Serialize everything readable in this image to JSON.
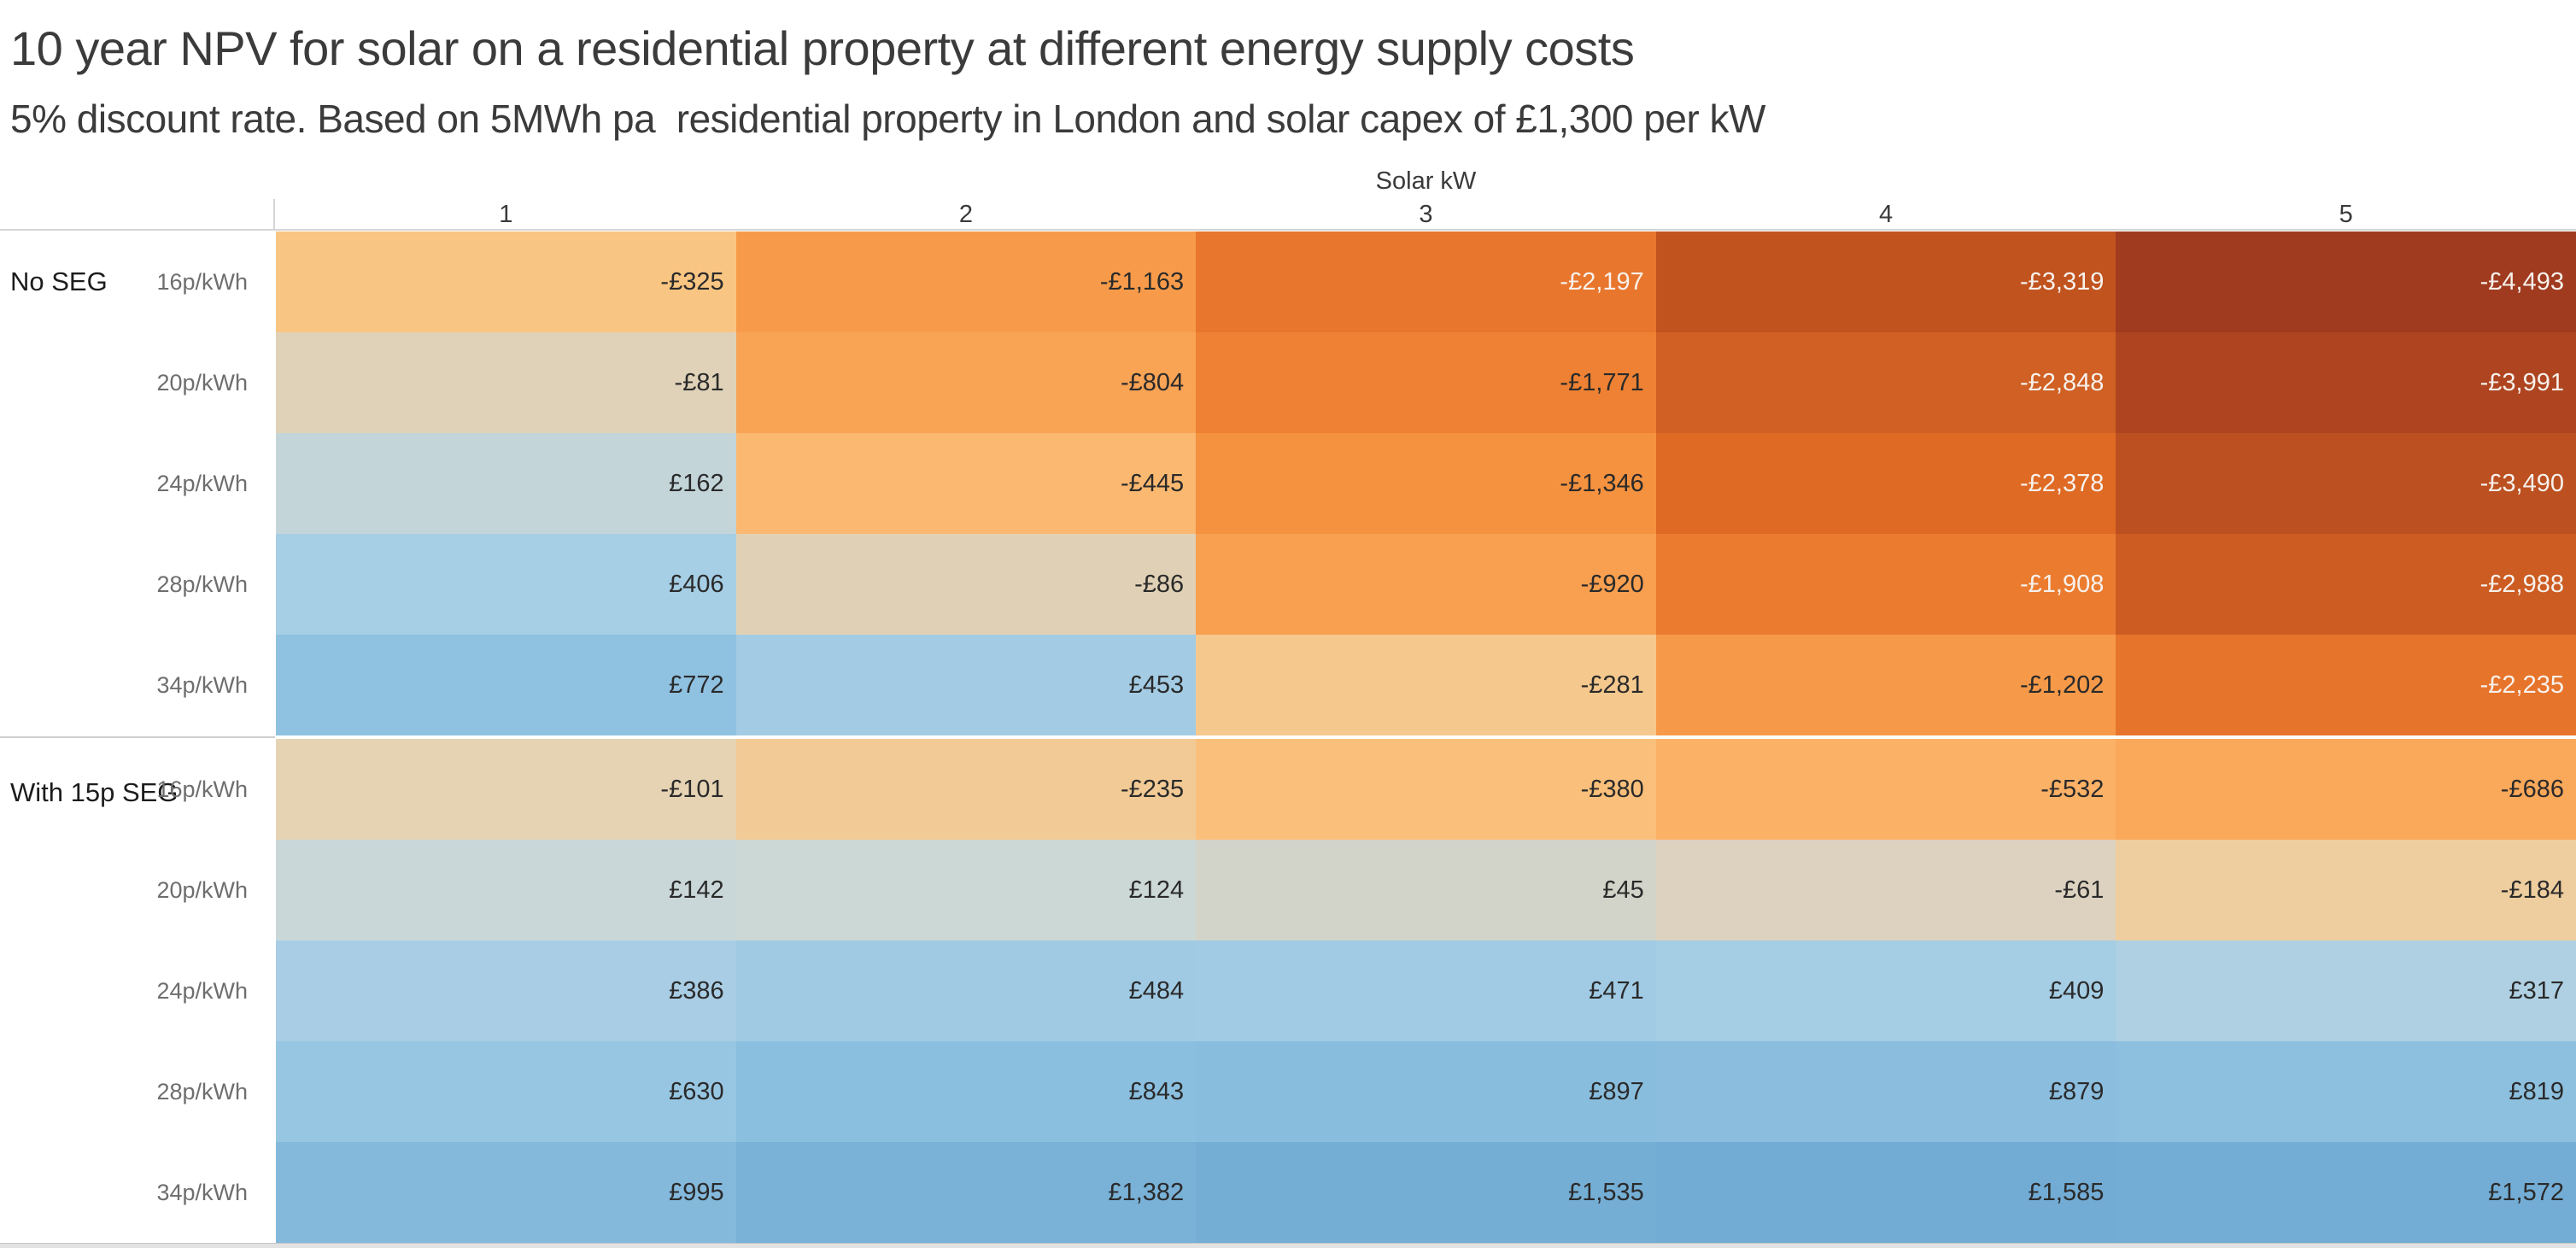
{
  "title": "10 year NPV for solar on a residential property at different energy supply costs",
  "subtitle": "5% discount rate. Based on 5MWh pa  residential property in London and solar capex of £1,300 per kW",
  "axis": {
    "label": "Solar kW",
    "columns": [
      "1",
      "2",
      "3",
      "4",
      "5"
    ]
  },
  "palette": {
    "dark": "#2a2a2a",
    "light": "#f7f1ec"
  },
  "groups": [
    {
      "label": "No SEG",
      "rows": [
        {
          "rate": "16p/kWh",
          "cells": [
            {
              "label": "-£325",
              "bg": "#f9c582",
              "fg": "dark"
            },
            {
              "label": "-£1,163",
              "bg": "#f79b4b",
              "fg": "dark"
            },
            {
              "label": "-£2,197",
              "bg": "#e8762d",
              "fg": "light"
            },
            {
              "label": "-£3,319",
              "bg": "#c1531f",
              "fg": "light"
            },
            {
              "label": "-£4,493",
              "bg": "#a03b20",
              "fg": "light"
            }
          ]
        },
        {
          "rate": "20p/kWh",
          "cells": [
            {
              "label": "-£81",
              "bg": "#e0d2b8",
              "fg": "dark"
            },
            {
              "label": "-£804",
              "bg": "#f9a355",
              "fg": "dark"
            },
            {
              "label": "-£1,771",
              "bg": "#ee8133",
              "fg": "dark"
            },
            {
              "label": "-£2,848",
              "bg": "#d06023",
              "fg": "light"
            },
            {
              "label": "-£3,991",
              "bg": "#ae4520",
              "fg": "light"
            }
          ]
        },
        {
          "rate": "24p/kWh",
          "cells": [
            {
              "label": "£162",
              "bg": "#c4d5da",
              "fg": "dark"
            },
            {
              "label": "-£445",
              "bg": "#fbb870",
              "fg": "dark"
            },
            {
              "label": "-£1,346",
              "bg": "#f4923f",
              "fg": "dark"
            },
            {
              "label": "-£2,378",
              "bg": "#df6a24",
              "fg": "light"
            },
            {
              "label": "-£3,490",
              "bg": "#bc5020",
              "fg": "light"
            }
          ]
        },
        {
          "rate": "28p/kWh",
          "cells": [
            {
              "label": "£406",
              "bg": "#a6cee5",
              "fg": "dark"
            },
            {
              "label": "-£86",
              "bg": "#e0d1b6",
              "fg": "dark"
            },
            {
              "label": "-£920",
              "bg": "#f89f50",
              "fg": "dark"
            },
            {
              "label": "-£1,908",
              "bg": "#eb7c2f",
              "fg": "light"
            },
            {
              "label": "-£2,988",
              "bg": "#cc5c22",
              "fg": "light"
            }
          ]
        },
        {
          "rate": "34p/kWh",
          "cells": [
            {
              "label": "£772",
              "bg": "#8fc1e1",
              "fg": "dark"
            },
            {
              "label": "£453",
              "bg": "#a3cce4",
              "fg": "dark"
            },
            {
              "label": "-£281",
              "bg": "#f5c88d",
              "fg": "dark"
            },
            {
              "label": "-£1,202",
              "bg": "#f69a49",
              "fg": "dark"
            },
            {
              "label": "-£2,235",
              "bg": "#e7742b",
              "fg": "light"
            }
          ]
        }
      ]
    },
    {
      "label": "With 15p SEG",
      "rows": [
        {
          "rate": "16p/kWh",
          "cells": [
            {
              "label": "-£101",
              "bg": "#e5d3b3",
              "fg": "dark"
            },
            {
              "label": "-£235",
              "bg": "#f2ca95",
              "fg": "dark"
            },
            {
              "label": "-£380",
              "bg": "#fac07b",
              "fg": "dark"
            },
            {
              "label": "-£532",
              "bg": "#fbb166",
              "fg": "dark"
            },
            {
              "label": "-£686",
              "bg": "#faa85a",
              "fg": "dark"
            }
          ]
        },
        {
          "rate": "20p/kWh",
          "cells": [
            {
              "label": "£142",
              "bg": "#cad7d8",
              "fg": "dark"
            },
            {
              "label": "£124",
              "bg": "#ccd8d5",
              "fg": "dark"
            },
            {
              "label": "£45",
              "bg": "#d3d4c9",
              "fg": "dark"
            },
            {
              "label": "-£61",
              "bg": "#ddd2c0",
              "fg": "dark"
            },
            {
              "label": "-£184",
              "bg": "#eecd9e",
              "fg": "dark"
            }
          ]
        },
        {
          "rate": "24p/kWh",
          "cells": [
            {
              "label": "£386",
              "bg": "#a8cde4",
              "fg": "dark"
            },
            {
              "label": "£484",
              "bg": "#a0cae3",
              "fg": "dark"
            },
            {
              "label": "£471",
              "bg": "#a1cbe4",
              "fg": "dark"
            },
            {
              "label": "£409",
              "bg": "#a5cde4",
              "fg": "dark"
            },
            {
              "label": "£317",
              "bg": "#afd0e2",
              "fg": "dark"
            }
          ]
        },
        {
          "rate": "28p/kWh",
          "cells": [
            {
              "label": "£630",
              "bg": "#97c6e2",
              "fg": "dark"
            },
            {
              "label": "£843",
              "bg": "#8bbfdf",
              "fg": "dark"
            },
            {
              "label": "£897",
              "bg": "#89bdde",
              "fg": "dark"
            },
            {
              "label": "£879",
              "bg": "#8abdde",
              "fg": "dark"
            },
            {
              "label": "£819",
              "bg": "#8dc0df",
              "fg": "dark"
            }
          ]
        },
        {
          "rate": "34p/kWh",
          "cells": [
            {
              "label": "£995",
              "bg": "#84b9dc",
              "fg": "dark"
            },
            {
              "label": "£1,382",
              "bg": "#79b1d7",
              "fg": "dark"
            },
            {
              "label": "£1,535",
              "bg": "#74aed5",
              "fg": "dark"
            },
            {
              "label": "£1,585",
              "bg": "#72acd4",
              "fg": "dark"
            },
            {
              "label": "£1,572",
              "bg": "#73add5",
              "fg": "dark"
            }
          ]
        }
      ]
    }
  ],
  "chart_data": {
    "type": "heatmap",
    "title": "10 year NPV for solar on a residential property at different energy supply costs",
    "subtitle": "5% discount rate. Based on 5MWh pa  residential property in London and solar capex of £1,300 per kW",
    "x": {
      "label": "Solar kW",
      "categories": [
        1,
        2,
        3,
        4,
        5
      ]
    },
    "y": {
      "row_groups": [
        "No SEG",
        "With 15p SEG"
      ],
      "row_categories": [
        "16p/kWh",
        "20p/kWh",
        "24p/kWh",
        "28p/kWh",
        "34p/kWh"
      ]
    },
    "units": "GBP",
    "series": [
      {
        "group": "No SEG",
        "rate": "16p/kWh",
        "values": [
          -325,
          -1163,
          -2197,
          -3319,
          -4493
        ]
      },
      {
        "group": "No SEG",
        "rate": "20p/kWh",
        "values": [
          -81,
          -804,
          -1771,
          -2848,
          -3991
        ]
      },
      {
        "group": "No SEG",
        "rate": "24p/kWh",
        "values": [
          162,
          -445,
          -1346,
          -2378,
          -3490
        ]
      },
      {
        "group": "No SEG",
        "rate": "28p/kWh",
        "values": [
          406,
          -86,
          -920,
          -1908,
          -2988
        ]
      },
      {
        "group": "No SEG",
        "rate": "34p/kWh",
        "values": [
          772,
          453,
          -281,
          -1202,
          -2235
        ]
      },
      {
        "group": "With 15p SEG",
        "rate": "16p/kWh",
        "values": [
          -101,
          -235,
          -380,
          -532,
          -686
        ]
      },
      {
        "group": "With 15p SEG",
        "rate": "20p/kWh",
        "values": [
          142,
          124,
          45,
          -61,
          -184
        ]
      },
      {
        "group": "With 15p SEG",
        "rate": "24p/kWh",
        "values": [
          386,
          484,
          471,
          409,
          317
        ]
      },
      {
        "group": "With 15p SEG",
        "rate": "28p/kWh",
        "values": [
          630,
          843,
          897,
          879,
          819
        ]
      },
      {
        "group": "With 15p SEG",
        "rate": "34p/kWh",
        "values": [
          995,
          1382,
          1535,
          1585,
          1572
        ]
      }
    ],
    "color_scale": {
      "min_value": -4493,
      "max_value": 1585,
      "negative_end_color": "#a03b20",
      "neutral_color": "#d9d5c6",
      "positive_end_color": "#72acd4"
    },
    "legend": false,
    "grid": false
  }
}
